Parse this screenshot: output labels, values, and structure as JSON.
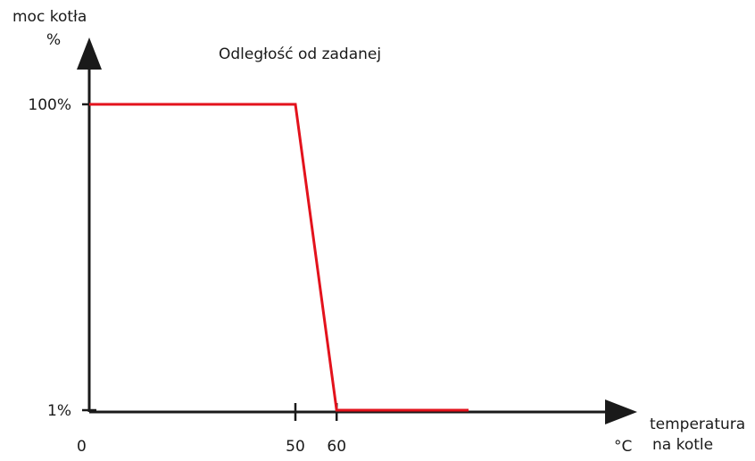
{
  "chart_data": {
    "type": "line",
    "title": "Odległość od zadanej",
    "ylabel_line1": "moc kotła",
    "ylabel_line2": "%",
    "xlabel_line1": "temperatura",
    "xlabel_line2": "na kotle",
    "x_unit": "°C",
    "x_origin_label": "0",
    "x_ticks": [
      {
        "value": 50,
        "label": "50"
      },
      {
        "value": 60,
        "label": "60"
      }
    ],
    "y_ticks": [
      {
        "value": 100,
        "label": "100%"
      },
      {
        "value": 1,
        "label": "1%"
      }
    ],
    "series": [
      {
        "points": [
          {
            "x": 0,
            "y": 100
          },
          {
            "x": 50,
            "y": 100
          },
          {
            "x": 60,
            "y": 1
          },
          {
            "x": 92,
            "y": 1
          }
        ]
      }
    ],
    "colors": {
      "line": "#e3121c",
      "axis": "#1a1a1a"
    }
  }
}
